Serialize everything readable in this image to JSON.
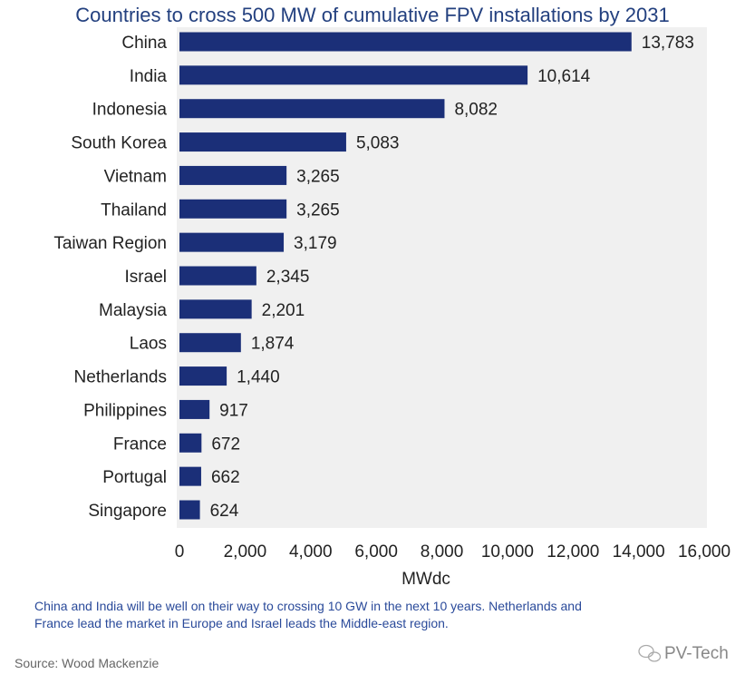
{
  "chart_data": {
    "type": "bar",
    "orientation": "horizontal",
    "title": "Countries to cross 500 MW of cumulative FPV installations by 2031",
    "categories": [
      "China",
      "India",
      "Indonesia",
      "South Korea",
      "Vietnam",
      "Thailand",
      "Taiwan Region",
      "Israel",
      "Malaysia",
      "Laos",
      "Netherlands",
      "Philippines",
      "France",
      "Portugal",
      "Singapore"
    ],
    "values": [
      13783,
      10614,
      8082,
      5083,
      3265,
      3265,
      3179,
      2345,
      2201,
      1874,
      1440,
      917,
      672,
      662,
      624
    ],
    "value_labels": [
      "13,783",
      "10,614",
      "8,082",
      "5,083",
      "3,265",
      "3,265",
      "3,179",
      "2,345",
      "2,201",
      "1,874",
      "1,440",
      "917",
      "672",
      "662",
      "624"
    ],
    "xlabel": "MWdc",
    "ylabel": "",
    "xlim": [
      0,
      16000
    ],
    "xticks": [
      0,
      2000,
      4000,
      6000,
      8000,
      10000,
      12000,
      14000,
      16000
    ],
    "xtick_labels": [
      "0",
      "2,000",
      "4,000",
      "6,000",
      "8,000",
      "10,000",
      "12,000",
      "14,000",
      "16,000"
    ],
    "grid": false,
    "colors": {
      "bar": "#1b2f78",
      "title": "#23407f",
      "plot_bg": "#f0f0f0"
    }
  },
  "caption": {
    "line1": "China and India will be well on their way to crossing 10 GW in the next 10 years. Netherlands and",
    "line2": "France lead the market in Europe and Israel leads the Middle-east region."
  },
  "source": "Source: Wood Mackenzie",
  "watermark": "PV-Tech"
}
